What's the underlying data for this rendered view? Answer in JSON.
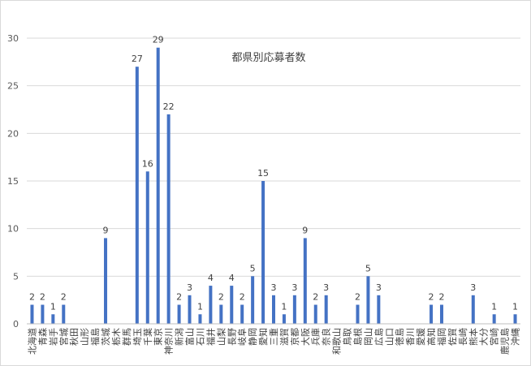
{
  "chart_data": {
    "type": "bar",
    "title": "都県別応募者数",
    "xlabel": "",
    "ylabel": "",
    "ylim": [
      0,
      30
    ],
    "yticks": [
      0,
      5,
      10,
      15,
      20,
      25,
      30
    ],
    "grid": true,
    "legend": "none",
    "bar_color": "#4472c4",
    "categories": [
      "北海道",
      "青森",
      "岩手",
      "宮城",
      "秋田",
      "山形",
      "福島",
      "茨城",
      "栃木",
      "群馬",
      "埼玉",
      "千葉",
      "東京",
      "神奈川",
      "新潟",
      "富山",
      "石川",
      "福井",
      "山梨",
      "長野",
      "岐阜",
      "静岡",
      "愛知",
      "三重",
      "滋賀",
      "京都",
      "大阪",
      "兵庫",
      "奈良",
      "和歌山",
      "鳥取",
      "島根",
      "岡山",
      "広島",
      "山口",
      "徳島",
      "香川",
      "愛媛",
      "高知",
      "福岡",
      "佐賀",
      "長崎",
      "熊本",
      "大分",
      "宮崎",
      "鹿児島",
      "沖縄"
    ],
    "values": [
      2,
      2,
      1,
      2,
      0,
      0,
      0,
      9,
      0,
      0,
      27,
      16,
      29,
      22,
      2,
      3,
      1,
      4,
      2,
      4,
      2,
      5,
      15,
      3,
      1,
      3,
      9,
      2,
      3,
      0,
      0,
      2,
      5,
      3,
      0,
      0,
      0,
      0,
      2,
      2,
      0,
      0,
      3,
      0,
      1,
      0,
      1
    ]
  }
}
